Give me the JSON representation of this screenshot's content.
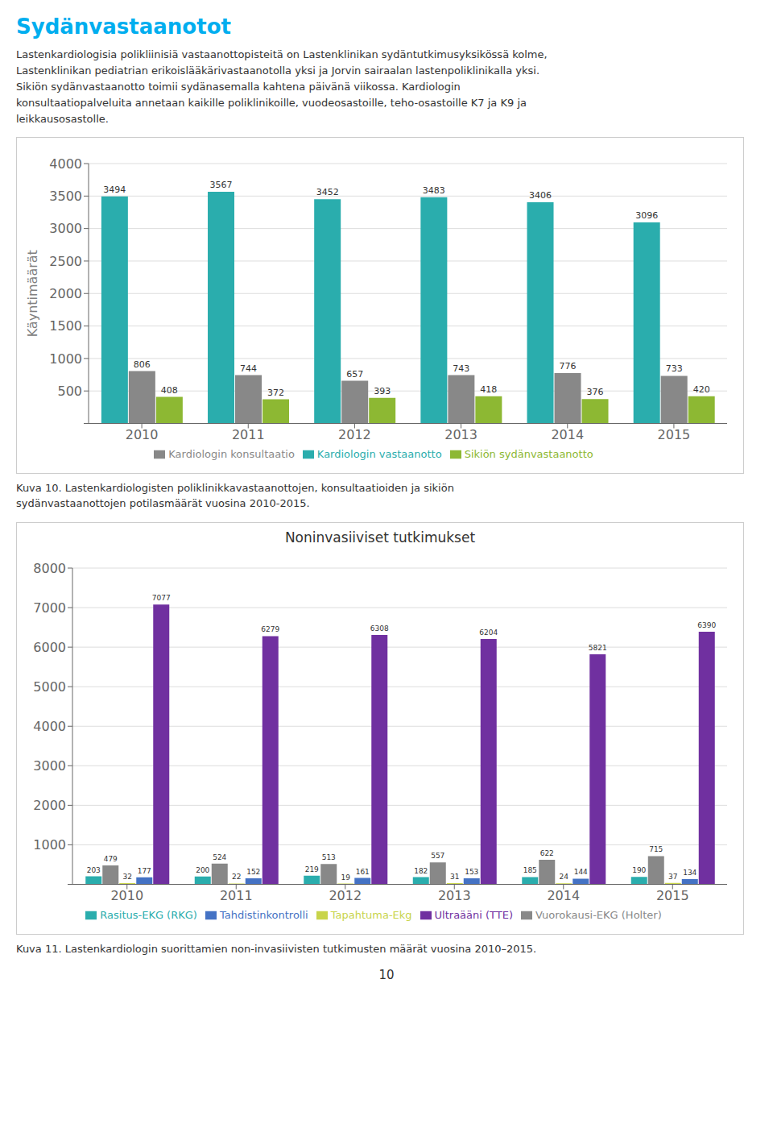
{
  "title": "Sydänvastaanotot",
  "annotations": [
    "Lastenkardiologisia polikliinisiä vastaanottopisteitä on Lastenklinikan sydäntutkimusyksikössä kolme,",
    "Lastenklinikan pediatrian erikoislääkärivastaanotolla yksi ja Jorvin sairaalan lastenpoliklinikalla yksi.",
    "Sikiön sydänvastaanotto toimii sydänasemalla kahtena päivänä viikossa. Kardiologin",
    "konsultaatiopalveluita annetaan kaikille poliklinikoille, vuodeosastoille, teho-osastoille K7 ja K9 ja",
    "leikkausosastolle."
  ],
  "footer": "10",
  "chart_data": [
    {
      "type": "bar",
      "ylabel": "Käyntimäärät",
      "categories": [
        "2010",
        "2011",
        "2012",
        "2013",
        "2014",
        "2015"
      ],
      "series": [
        {
          "name": "Kardiologin vastaanotto",
          "color": "#2AADAD",
          "values": [
            3494,
            3567,
            3452,
            3483,
            3406,
            3096
          ]
        },
        {
          "name": "Kardiologin konsultaatio",
          "color": "#888888",
          "values": [
            806,
            744,
            657,
            743,
            776,
            733
          ]
        },
        {
          "name": "Sikiön sydänvastaanotto",
          "color": "#8DB833",
          "values": [
            408,
            372,
            393,
            418,
            376,
            420
          ]
        }
      ],
      "ylim": [
        0,
        4000
      ],
      "yticks": [
        {
          "value": 0,
          "label": null
        },
        500,
        1000,
        1500,
        2000,
        2500,
        3000,
        3500,
        4000
      ],
      "grid": true,
      "legend": "bottom",
      "data_labels": true,
      "annotations": [
        "Kuva 10. Lastenkardiologisten poliklinikkavastaanottojen, konsultaatioiden ja sikiön",
        "sydänvastaanottojen potilasmäärät vuosina 2010-2015."
      ]
    },
    {
      "type": "bar",
      "title": "Noninvasiiviset tutkimukset",
      "categories": [
        "2010",
        "2011",
        "2012",
        "2013",
        "2014",
        "2015"
      ],
      "series": [
        {
          "name": "Rasitus-EKG (RKG)",
          "color": "#2AADAD",
          "values": [
            203,
            200,
            219,
            182,
            185,
            190
          ]
        },
        {
          "name": "Vuorokausi-EKG (Holter)",
          "color": "#888888",
          "values": [
            479,
            524,
            513,
            557,
            622,
            715
          ]
        },
        {
          "name": "Tapahtuma-Ekg",
          "color": "#C8D44A",
          "values": [
            32,
            22,
            19,
            31,
            24,
            37
          ]
        },
        {
          "name": "Tahdistinkontrolli",
          "color": "#4472C4",
          "values": [
            177,
            152,
            161,
            153,
            144,
            134
          ]
        },
        {
          "name": "Ultraääni (TTE)",
          "color": "#7030A0",
          "values": [
            7077,
            6279,
            6308,
            6204,
            5821,
            6390
          ]
        }
      ],
      "ylim": [
        0,
        8000
      ],
      "yticks": [
        {
          "value": 0,
          "label": null
        },
        1000,
        2000,
        3000,
        4000,
        5000,
        6000,
        7000,
        8000
      ],
      "grid": true,
      "legend": "bottom",
      "data_labels": true,
      "annotations": [
        "Kuva 11. Lastenkardiologin suorittamien non-invasiivisten tutkimusten määrät vuosina 2010–2015."
      ]
    }
  ]
}
